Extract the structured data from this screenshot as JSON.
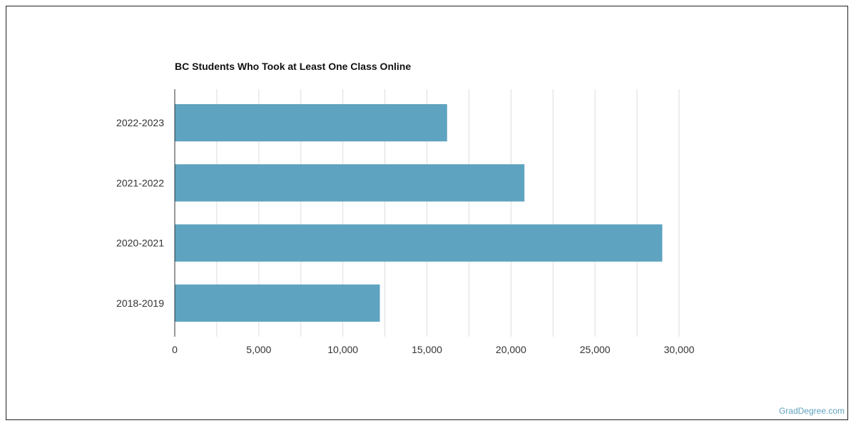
{
  "chart_data": {
    "type": "bar",
    "orientation": "horizontal",
    "title": "BC Students Who Took at Least One Class Online",
    "xlabel": "",
    "ylabel": "",
    "categories": [
      "2022-2023",
      "2021-2022",
      "2020-2021",
      "2018-2019"
    ],
    "values": [
      16200,
      20800,
      29000,
      12200
    ],
    "xlim": [
      0,
      30000
    ],
    "x_ticks": [
      0,
      5000,
      10000,
      15000,
      20000,
      25000,
      30000
    ],
    "x_tick_labels": [
      "0",
      "5,000",
      "10,000",
      "15,000",
      "20,000",
      "25,000",
      "30,000"
    ],
    "grid": true,
    "bar_color": "#5ea3bf"
  },
  "credit": "GradDegree.com"
}
